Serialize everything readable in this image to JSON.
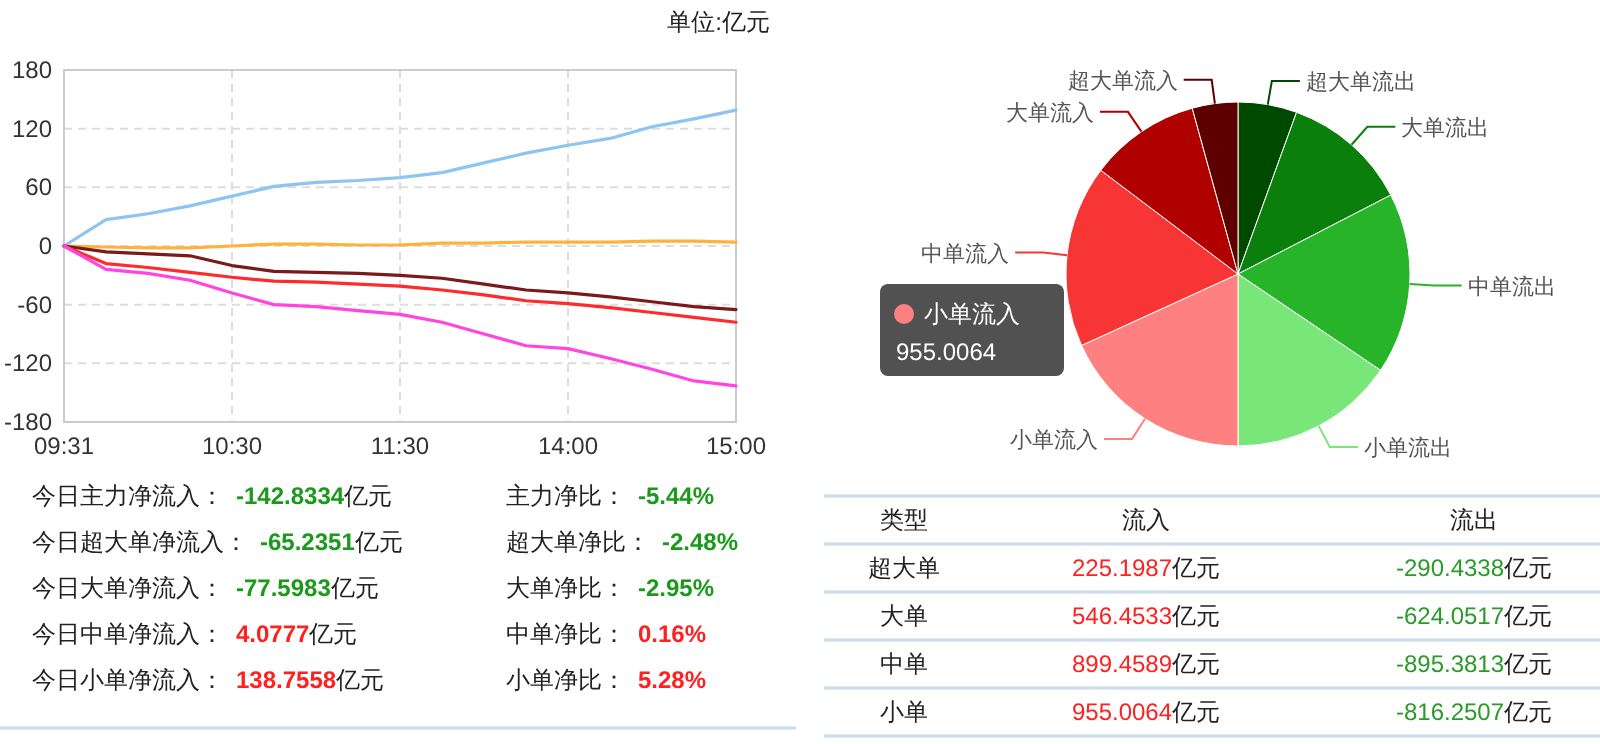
{
  "chart_data": [
    {
      "type": "line",
      "subtitle": "单位:亿元",
      "categories": [
        "09:31",
        null,
        null,
        null,
        "10:30",
        null,
        null,
        null,
        "11:30",
        null,
        null,
        null,
        "14:00",
        null,
        null,
        null,
        "15:00"
      ],
      "ylim": [
        -180,
        180
      ],
      "yticks": [
        -180,
        -120,
        -60,
        0,
        60,
        120,
        180
      ],
      "grid": true,
      "marker": "none",
      "line_style": "solid",
      "series": [
        {
          "color": "#8ec4f0",
          "values": [
            0,
            27,
            33,
            41,
            51,
            61,
            65,
            67,
            70,
            75,
            85,
            95,
            103,
            110,
            122,
            130,
            139
          ]
        },
        {
          "color": "#ffb13d",
          "values": [
            0,
            -1,
            -2,
            -2,
            0,
            2,
            2,
            1,
            1,
            3,
            3,
            4,
            4,
            4,
            5,
            5,
            4
          ]
        },
        {
          "color": "#7b1a1a",
          "values": [
            0,
            -6,
            -8,
            -10,
            -20,
            -26,
            -27,
            -28,
            -30,
            -33,
            -39,
            -45,
            -48,
            -52,
            -57,
            -62,
            -65
          ]
        },
        {
          "color": "#ff2b2b",
          "values": [
            0,
            -18,
            -22,
            -27,
            -32,
            -36,
            -37,
            -39,
            -41,
            -45,
            -50,
            -56,
            -59,
            -63,
            -68,
            -73,
            -78
          ]
        },
        {
          "color": "#ff45e0",
          "values": [
            0,
            -24,
            -28,
            -35,
            -48,
            -60,
            -62,
            -66,
            -70,
            -78,
            -90,
            -102,
            -105,
            -115,
            -126,
            -138,
            -143
          ]
        }
      ]
    },
    {
      "type": "other",
      "annotations": [
        "今日主力净流入：",
        "-142.8334",
        "亿元",
        "今日超大单净流入：",
        "-65.2351",
        "亿元",
        "今日大单净流入：",
        "-77.5983",
        "亿元",
        "今日中单净流入：",
        "4.0777",
        "亿元",
        "今日小单净流入：",
        "138.7558",
        "亿元",
        "主力净比：",
        "-5.44%",
        "超大单净比：",
        "-2.48%",
        "大单净比：",
        "-2.95%",
        "中单净比：",
        "0.16%",
        "小单净比：",
        "5.28%"
      ],
      "colors": [
        "#222222",
        "#1a9a1a",
        "#222222",
        "#222222",
        "#1a9a1a",
        "#222222",
        "#222222",
        "#1a9a1a",
        "#222222",
        "#222222",
        "#ff2020",
        "#222222",
        "#222222",
        "#ff2020",
        "#222222",
        "#222222",
        "#1a9a1a",
        "#222222",
        "#1a9a1a",
        "#222222",
        "#1a9a1a",
        "#222222",
        "#ff2020",
        "#222222",
        "#ff2020"
      ]
    },
    {
      "type": "pie",
      "categories": [
        "超大单流出",
        "大单流出",
        "中单流出",
        "小单流出",
        "小单流入",
        "中单流入",
        "大单流入",
        "超大单流入"
      ],
      "values": [
        290.4338,
        624.0517,
        895.3813,
        816.2507,
        955.0064,
        899.4589,
        546.4533,
        225.1987
      ],
      "colors": [
        "#004a00",
        "#0b7f0b",
        "#28b428",
        "#78e678",
        "#ff8080",
        "#f83535",
        "#b00000",
        "#5e0000"
      ],
      "value_labels": [
        null,
        null,
        null,
        null,
        "955.0064",
        null,
        null,
        null
      ]
    },
    {
      "type": "other",
      "annotations": [
        "类型",
        "流入",
        "流出",
        "超大单",
        "225.1987",
        "亿元",
        "-290.4338",
        "亿元",
        "大单",
        "546.4533",
        "亿元",
        "-624.0517",
        "亿元",
        "中单",
        "899.4589",
        "亿元",
        "-895.3813",
        "亿元",
        "小单",
        "955.0064",
        "亿元",
        "-816.2507",
        "亿元"
      ],
      "colors": [
        "#222222",
        "#222222",
        "#222222",
        "#222222",
        "#ff2020",
        "#222222",
        "#2a9a2a",
        "#222222",
        "#222222",
        "#ff2020",
        "#222222",
        "#2a9a2a",
        "#222222",
        "#222222",
        "#ff2020",
        "#222222",
        "#2a9a2a",
        "#222222",
        "#222222",
        "#ff2020",
        "#222222",
        "#2a9a2a",
        "#222222"
      ]
    }
  ]
}
